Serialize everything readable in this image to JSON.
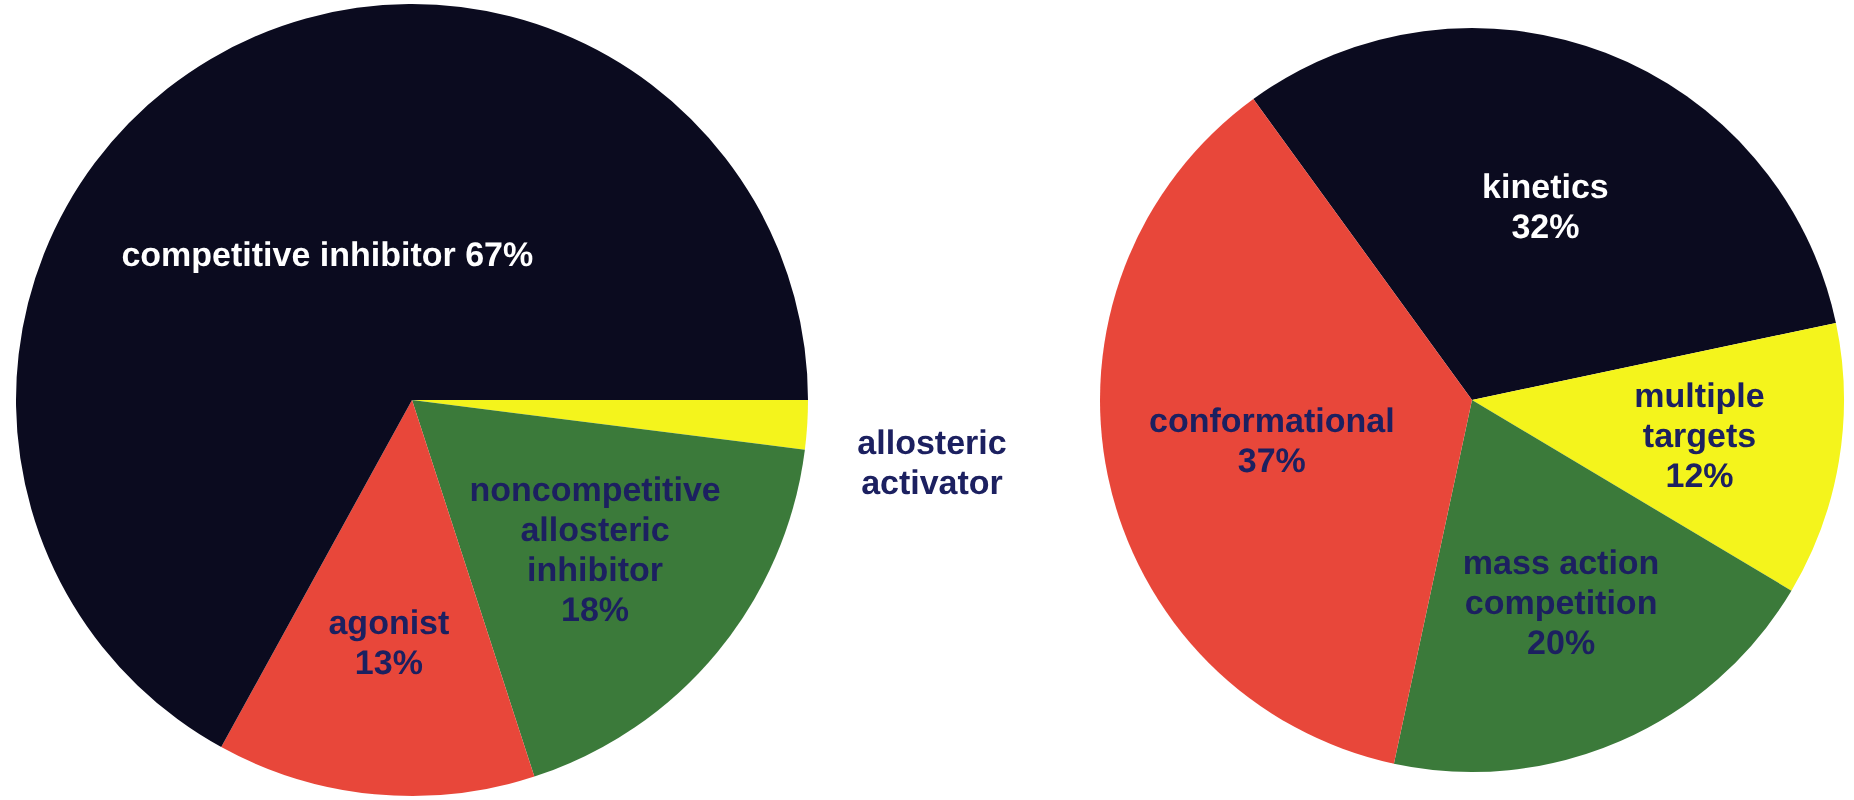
{
  "chart_data": [
    {
      "type": "pie",
      "categories": [
        "allosteric activator",
        "noncompetitive allosteric inhibitor",
        "agonist",
        "competitive inhibitor"
      ],
      "values": [
        2,
        18,
        13,
        67
      ],
      "value_labels": [
        null,
        "18%",
        "13%",
        "67%"
      ],
      "colors": [
        "#f4f41c",
        "#3b7a3a",
        "#e8473a",
        "#0b0b1f"
      ]
    },
    {
      "type": "pie",
      "categories": [
        "kinetics",
        "multiple targets",
        "mass action competition",
        "conformational"
      ],
      "values": [
        32,
        12,
        20,
        37
      ],
      "value_labels": [
        "32%",
        "12%",
        "20%",
        "37%"
      ],
      "colors": [
        "#0b0b1f",
        "#f4f41c",
        "#3b7a3a",
        "#e8473a"
      ]
    }
  ]
}
